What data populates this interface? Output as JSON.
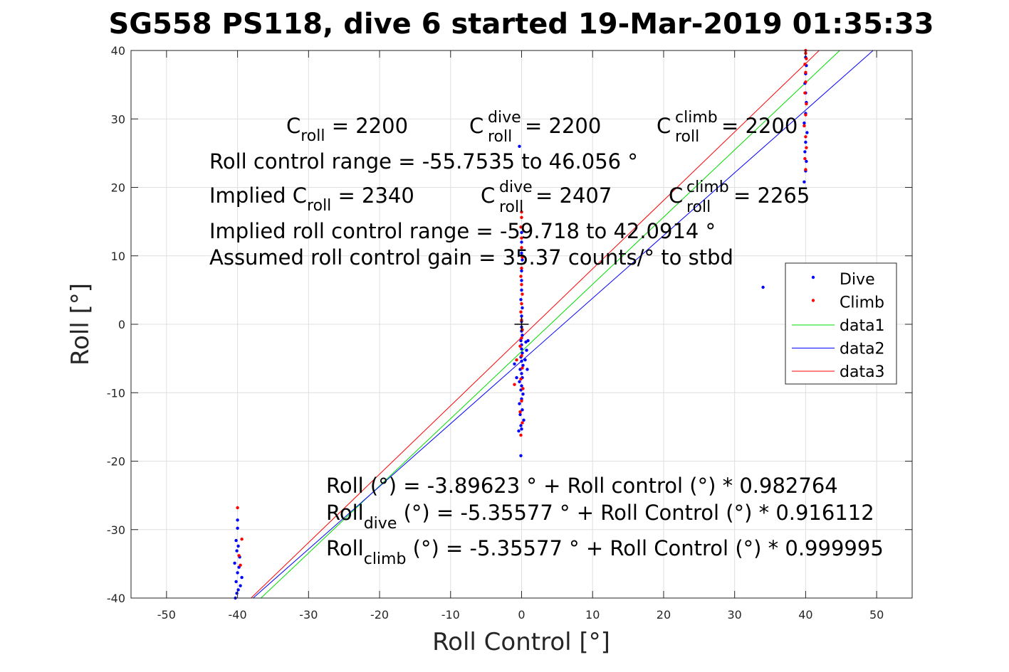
{
  "chart_data": {
    "type": "scatter",
    "title": "SG558 PS118, dive 6 started 19-Mar-2019 01:35:33",
    "xlabel": "Roll Control [°]",
    "ylabel": "Roll [°]",
    "xlim": [
      -55,
      55
    ],
    "ylim": [
      -40,
      40
    ],
    "xticks": [
      -50,
      -40,
      -30,
      -20,
      -10,
      0,
      10,
      20,
      30,
      40,
      50
    ],
    "yticks": [
      -40,
      -30,
      -20,
      -10,
      0,
      10,
      20,
      30,
      40
    ],
    "grid": true,
    "legend_position": "right",
    "legend": [
      {
        "label": "Dive",
        "kind": "point",
        "color": "#0000ff"
      },
      {
        "label": "Climb",
        "kind": "point",
        "color": "#ff0000"
      },
      {
        "label": "data1",
        "kind": "line",
        "color": "#00dd00"
      },
      {
        "label": "data2",
        "kind": "line",
        "color": "#0000ff"
      },
      {
        "label": "data3",
        "kind": "line",
        "color": "#ff0000"
      }
    ],
    "series": [
      {
        "name": "Dive",
        "type": "scatter",
        "color": "#0000ff",
        "points": [
          [
            -40.3,
            -40
          ],
          [
            -40.1,
            -39.3
          ],
          [
            -39.9,
            -38.8
          ],
          [
            -39.6,
            -38.2
          ],
          [
            -40.2,
            -37.6
          ],
          [
            -39.4,
            -37.0
          ],
          [
            -40.0,
            -36.3
          ],
          [
            -39.8,
            -35.5
          ],
          [
            -40.4,
            -34.9
          ],
          [
            -39.7,
            -34.0
          ],
          [
            -40.1,
            -33.1
          ],
          [
            -39.9,
            -32.4
          ],
          [
            -40.2,
            -31.6
          ],
          [
            -40.0,
            -29.8
          ],
          [
            -40.0,
            -28.6
          ],
          [
            -0.4,
            -15.6
          ],
          [
            0.0,
            -15.3
          ],
          [
            -0.1,
            -14.8
          ],
          [
            0.3,
            -14.0
          ],
          [
            -0.2,
            -13.2
          ],
          [
            0.1,
            -12.5
          ],
          [
            -0.3,
            -11.6
          ],
          [
            0.0,
            -10.9
          ],
          [
            0.2,
            -10.2
          ],
          [
            -0.1,
            -9.6
          ],
          [
            0.0,
            -9.0
          ],
          [
            -0.3,
            -8.4
          ],
          [
            0.1,
            -7.8
          ],
          [
            0.0,
            -7.2
          ],
          [
            -0.2,
            -6.6
          ],
          [
            0.2,
            -6.0
          ],
          [
            0.0,
            -5.4
          ],
          [
            -0.1,
            -4.8
          ],
          [
            0.1,
            -4.2
          ],
          [
            0.0,
            -3.6
          ],
          [
            0.0,
            -3.0
          ],
          [
            -0.1,
            -2.4
          ],
          [
            0.1,
            -1.6
          ],
          [
            0.0,
            -1.0
          ],
          [
            0.0,
            -0.4
          ],
          [
            0.0,
            0.4
          ],
          [
            0.0,
            1.2
          ],
          [
            0.1,
            2.4
          ],
          [
            -0.1,
            3.6
          ],
          [
            0.0,
            5.0
          ],
          [
            0.0,
            6.4
          ],
          [
            0.0,
            7.8
          ],
          [
            0.1,
            9.4
          ],
          [
            0.0,
            10.4
          ],
          [
            0.0,
            12.0
          ],
          [
            0.0,
            13.4
          ],
          [
            0.6,
            -2.6
          ],
          [
            0.7,
            -3.8
          ],
          [
            0.9,
            -2.4
          ],
          [
            0.5,
            -5.2
          ],
          [
            0.8,
            -6.6
          ],
          [
            -1.0,
            -5.8
          ],
          [
            -0.7,
            -7.8
          ],
          [
            -0.3,
            26.0
          ],
          [
            -0.1,
            -19.2
          ],
          [
            34.0,
            5.4
          ],
          [
            39.8,
            20.8
          ],
          [
            40.0,
            22.4
          ],
          [
            40.1,
            23.8
          ],
          [
            39.9,
            25.2
          ],
          [
            40.0,
            26.6
          ],
          [
            40.2,
            28.0
          ],
          [
            39.8,
            29.4
          ],
          [
            40.0,
            30.8
          ],
          [
            40.1,
            32.4
          ],
          [
            40.0,
            33.8
          ],
          [
            39.9,
            35.2
          ],
          [
            40.0,
            36.6
          ],
          [
            40.1,
            37.8
          ],
          [
            40.0,
            39.0
          ]
        ]
      },
      {
        "name": "Climb",
        "type": "scatter",
        "color": "#ff0000",
        "points": [
          [
            -40.0,
            -26.8
          ],
          [
            -39.4,
            -31.4
          ],
          [
            -39.8,
            -33.8
          ],
          [
            -39.6,
            -35.2
          ],
          [
            -0.1,
            -16.2
          ],
          [
            0.1,
            -14.4
          ],
          [
            -0.2,
            -12.8
          ],
          [
            0.0,
            -11.2
          ],
          [
            0.2,
            -9.4
          ],
          [
            -0.1,
            -8.0
          ],
          [
            0.1,
            -6.4
          ],
          [
            0.0,
            -4.6
          ],
          [
            -0.2,
            -3.2
          ],
          [
            0.0,
            -2.0
          ],
          [
            0.1,
            -0.8
          ],
          [
            0.0,
            0.6
          ],
          [
            -0.1,
            1.8
          ],
          [
            0.0,
            3.0
          ],
          [
            0.1,
            4.4
          ],
          [
            0.0,
            5.8
          ],
          [
            -0.1,
            7.0
          ],
          [
            0.0,
            8.2
          ],
          [
            0.1,
            9.8
          ],
          [
            0.0,
            11.2
          ],
          [
            0.0,
            12.6
          ],
          [
            -0.1,
            14.2
          ],
          [
            0.0,
            15.6
          ],
          [
            0.0,
            16.4
          ],
          [
            -1.0,
            -8.8
          ],
          [
            -0.7,
            -5.2
          ],
          [
            40.0,
            22.6
          ],
          [
            39.9,
            24.2
          ],
          [
            40.1,
            25.8
          ],
          [
            40.0,
            27.4
          ],
          [
            39.8,
            29.0
          ],
          [
            40.0,
            30.6
          ],
          [
            40.1,
            32.2
          ],
          [
            39.9,
            33.8
          ],
          [
            40.0,
            35.4
          ],
          [
            40.0,
            36.8
          ],
          [
            39.9,
            38.0
          ],
          [
            40.1,
            38.8
          ],
          [
            40.0,
            39.6
          ],
          [
            40.0,
            40.0
          ]
        ]
      },
      {
        "name": "data1",
        "type": "line",
        "color": "#00dd00",
        "x": [
          -36.7,
          44.8
        ],
        "y": [
          -40,
          40
        ]
      },
      {
        "name": "data2",
        "type": "line",
        "color": "#0000ff",
        "x": [
          -37.8,
          49.5
        ],
        "y": [
          -40,
          40
        ]
      },
      {
        "name": "data3",
        "type": "line",
        "color": "#ff0000",
        "x": [
          -38.1,
          41.9
        ],
        "y": [
          -40,
          40
        ]
      }
    ],
    "markers": [
      {
        "kind": "cross",
        "x": 0,
        "y": 0,
        "color": "#000000"
      }
    ],
    "annotations": {
      "croll": {
        "base": "C",
        "sub": "roll",
        "rest": " = 2200"
      },
      "croll_dive": {
        "base": "C",
        "sup": "dive",
        "sub": "roll",
        "rest": " = 2200"
      },
      "croll_climb": {
        "base": "C",
        "sup": "climb",
        "sub": "roll",
        "rest": " = 2200"
      },
      "range_line": "Roll control range = -55.7535 to 46.056 °",
      "implied_croll": {
        "base": "Implied C",
        "sub": "roll",
        "rest": " = 2340"
      },
      "implied_dive": {
        "base": "C",
        "sup": "dive",
        "sub": "roll",
        "rest": " = 2407"
      },
      "implied_climb": {
        "base": "C",
        "sup": "climb",
        "sub": "roll",
        "rest": " = 2265"
      },
      "implied_range_line": "Implied roll control range = -59.718 to 42.0914 °",
      "gain_line": "Assumed roll control gain = 35.37 counts/° to stbd",
      "fit_all": "Roll (°) = -3.89623 ° + Roll control (°) * 0.982764",
      "fit_dive": {
        "base": "Roll",
        "sub": "dive",
        "rest": " (°) = -5.35577 ° + Roll Control (°) * 0.916112"
      },
      "fit_climb": {
        "base": "Roll",
        "sub": "climb",
        "rest": " (°) = -5.35577 ° + Roll Control (°) * 0.999995"
      }
    }
  }
}
